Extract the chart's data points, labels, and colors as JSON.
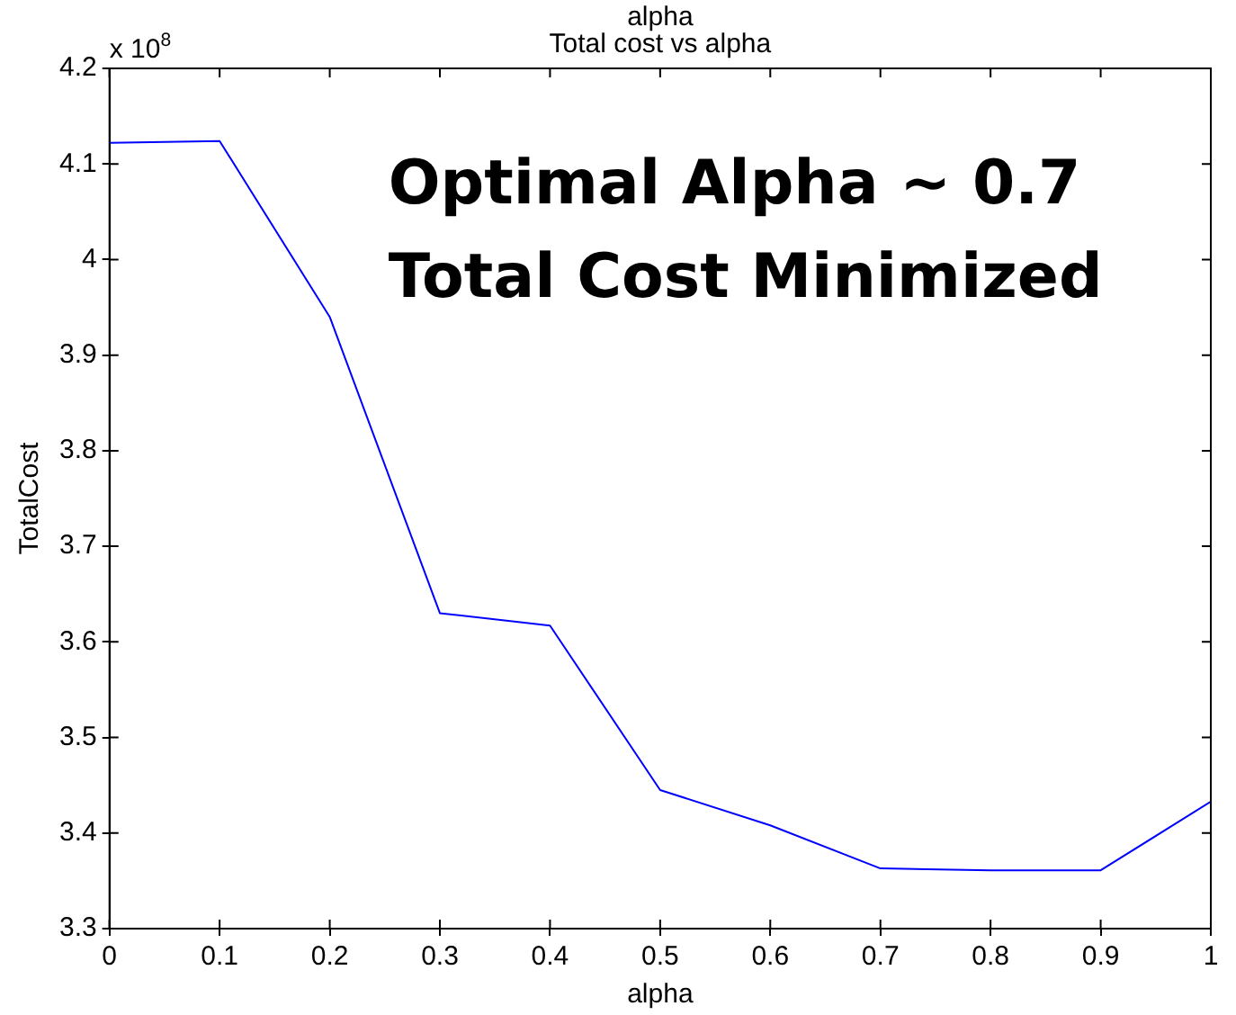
{
  "chart_data": {
    "type": "line",
    "title": "Total cost vs alpha",
    "x2label": "alpha",
    "xlabel": "alpha",
    "ylabel": "TotalCost",
    "x": [
      0,
      0.1,
      0.2,
      0.3,
      0.4,
      0.5,
      0.6,
      0.7,
      0.8,
      0.9,
      1
    ],
    "series": [
      {
        "color": "#0000ff",
        "values": [
          4.122,
          4.124,
          3.94,
          3.63,
          3.617,
          3.445,
          3.408,
          3.363,
          3.361,
          3.361,
          3.433
        ]
      }
    ],
    "xlim": [
      0,
      1
    ],
    "xticks": [
      0,
      0.1,
      0.2,
      0.3,
      0.4,
      0.5,
      0.6,
      0.7,
      0.8,
      0.9,
      1
    ],
    "ylim": [
      3.3,
      4.2
    ],
    "yticks": [
      3.3,
      3.4,
      3.5,
      3.6,
      3.7,
      3.8,
      3.9,
      4,
      4.1,
      4.2
    ],
    "grid": false,
    "legend": false,
    "marker": "none",
    "line_style": "solid",
    "annotations": [
      "x 10$^{8}$",
      "Optimal Alpha ~ 0.7",
      "Total Cost Minimized"
    ]
  }
}
